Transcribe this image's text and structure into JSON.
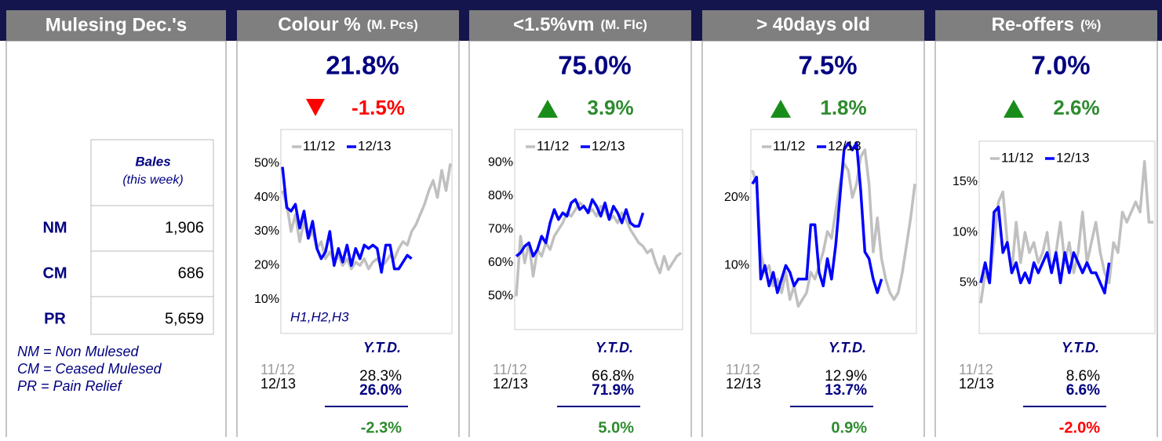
{
  "mulesing": {
    "title": "Mulesing Dec.'s",
    "column_header": "Bales",
    "column_subheader": "(this week)",
    "rows": [
      [
        "NM",
        "1,906"
      ],
      [
        "CM",
        "686"
      ],
      [
        "PR",
        "5,659"
      ]
    ],
    "notes": [
      "NM = Non Mulesed",
      "CM = Ceased Mulesed",
      "PR = Pain Relief"
    ]
  },
  "chart_data": [
    {
      "type": "line",
      "title": "Colour %",
      "unit": "(M. Pcs)",
      "headline": "21.8%",
      "change": "-1.5%",
      "trend": "down",
      "change_color": "#ff0000",
      "annotation": "H1,H2,H3",
      "ylim": [
        0,
        60
      ],
      "yticks": [
        {
          "value": 10,
          "label": "10%"
        },
        {
          "value": 20,
          "label": "20%"
        },
        {
          "value": 30,
          "label": "30%"
        },
        {
          "value": 40,
          "label": "40%"
        },
        {
          "value": 50,
          "label": "50%"
        }
      ],
      "series": [
        {
          "name": "11/12",
          "color": "#c0c0c0",
          "values": [
            42,
            38,
            30,
            35,
            27,
            33,
            28,
            30,
            25,
            27,
            22,
            24,
            21,
            23,
            20,
            22,
            19,
            21,
            20,
            22,
            19,
            21,
            22,
            20,
            21,
            23,
            22,
            25,
            27,
            26,
            30,
            32,
            35,
            38,
            42,
            45,
            40,
            48,
            42,
            50
          ]
        },
        {
          "name": "12/13",
          "color": "#0000ff",
          "values": [
            49,
            37,
            36,
            38,
            31,
            36,
            28,
            33,
            25,
            22,
            24,
            30,
            20,
            25,
            21,
            26,
            20,
            25,
            22,
            26,
            25,
            26,
            25,
            18,
            26,
            26,
            19,
            19,
            21,
            23,
            22
          ]
        }
      ],
      "ytd": {
        "label": "Y.T.D.",
        "rows": [
          [
            "11/12",
            "28.3%"
          ],
          [
            "12/13",
            "26.0%"
          ]
        ],
        "diff": "-2.3%",
        "diff_color": "#2e8b2e"
      }
    },
    {
      "type": "line",
      "title": "<1.5%vm",
      "unit": "(M. Flc)",
      "headline": "75.0%",
      "change": "3.9%",
      "trend": "up",
      "change_color": "#2e8b2e",
      "ylim": [
        40,
        100
      ],
      "yticks": [
        {
          "value": 50,
          "label": "50%"
        },
        {
          "value": 60,
          "label": "60%"
        },
        {
          "value": 70,
          "label": "70%"
        },
        {
          "value": 80,
          "label": "80%"
        },
        {
          "value": 90,
          "label": "90%"
        }
      ],
      "series": [
        {
          "name": "11/12",
          "color": "#c0c0c0",
          "values": [
            50,
            68,
            60,
            66,
            56,
            64,
            62,
            66,
            64,
            68,
            70,
            72,
            75,
            74,
            76,
            78,
            77,
            75,
            76,
            74,
            77,
            76,
            73,
            74,
            72,
            75,
            73,
            70,
            68,
            66,
            65,
            63,
            64,
            60,
            57,
            62,
            58,
            60,
            62,
            63
          ]
        },
        {
          "name": "12/13",
          "color": "#0000ff",
          "values": [
            62,
            63,
            65,
            66,
            62,
            64,
            68,
            66,
            72,
            76,
            73,
            75,
            74,
            78,
            79,
            76,
            77,
            75,
            79,
            77,
            74,
            78,
            73,
            77,
            75,
            72,
            76,
            72,
            71,
            71,
            75
          ]
        }
      ],
      "ytd": {
        "label": "Y.T.D.",
        "rows": [
          [
            "11/12",
            "66.8%"
          ],
          [
            "12/13",
            "71.9%"
          ]
        ],
        "diff": "5.0%",
        "diff_color": "#2e8b2e"
      }
    },
    {
      "type": "line",
      "title": "> 40days old",
      "headline": "7.5%",
      "change": "1.8%",
      "trend": "up",
      "change_color": "#2e8b2e",
      "ylim": [
        0,
        30
      ],
      "yticks": [
        {
          "value": 10,
          "label": "10%"
        },
        {
          "value": 20,
          "label": "20%"
        }
      ],
      "series": [
        {
          "name": "11/12",
          "color": "#c0c0c0",
          "values": [
            24,
            22,
            12,
            9,
            10,
            7,
            8,
            6,
            9,
            5,
            7,
            4,
            5,
            6,
            9,
            8,
            10,
            12,
            15,
            14,
            18,
            22,
            25,
            24,
            20,
            22,
            26,
            27,
            22,
            12,
            17,
            11,
            8,
            6,
            5,
            6,
            9,
            13,
            17,
            22
          ]
        },
        {
          "name": "12/13",
          "color": "#0000ff",
          "values": [
            22,
            23,
            8,
            10,
            7,
            9,
            6,
            8,
            10,
            9,
            7,
            8,
            8,
            8,
            16,
            16,
            9,
            7,
            11,
            8,
            13,
            20,
            27,
            28,
            27,
            28,
            21,
            12,
            11,
            8,
            6,
            8
          ]
        }
      ],
      "ytd": {
        "label": "Y.T.D.",
        "rows": [
          [
            "11/12",
            "12.9%"
          ],
          [
            "12/13",
            "13.7%"
          ]
        ],
        "diff": "0.9%",
        "diff_color": "#2e8b2e"
      }
    },
    {
      "type": "line",
      "title": "Re-offers",
      "unit": "(%)",
      "headline": "7.0%",
      "change": "2.6%",
      "trend": "up",
      "change_color": "#2e8b2e",
      "ylim": [
        0,
        19
      ],
      "yticks": [
        {
          "value": 5,
          "label": "5%"
        },
        {
          "value": 10,
          "label": "10%"
        },
        {
          "value": 15,
          "label": "15%"
        }
      ],
      "series": [
        {
          "name": "11/12",
          "color": "#c0c0c0",
          "values": [
            3,
            6,
            5,
            9,
            13,
            14,
            9,
            6,
            11,
            7,
            10,
            8,
            9,
            7,
            8,
            10,
            6,
            8,
            11,
            7,
            9,
            6,
            8,
            12,
            7,
            9,
            11,
            8,
            6,
            5,
            9,
            8,
            12,
            11,
            12,
            13,
            12,
            17,
            11,
            11
          ]
        },
        {
          "name": "12/13",
          "color": "#0000ff",
          "values": [
            5,
            7,
            5,
            12,
            12.5,
            8,
            9,
            6,
            7,
            5,
            6,
            5,
            7,
            6,
            7,
            8,
            6,
            8,
            5,
            8,
            6,
            8,
            7,
            6,
            7,
            6,
            6,
            5,
            4,
            7
          ]
        }
      ],
      "ytd": {
        "label": "Y.T.D.",
        "rows": [
          [
            "11/12",
            "8.6%"
          ],
          [
            "12/13",
            "6.6%"
          ]
        ],
        "diff": "-2.0%",
        "diff_color": "#ff0000"
      }
    }
  ]
}
